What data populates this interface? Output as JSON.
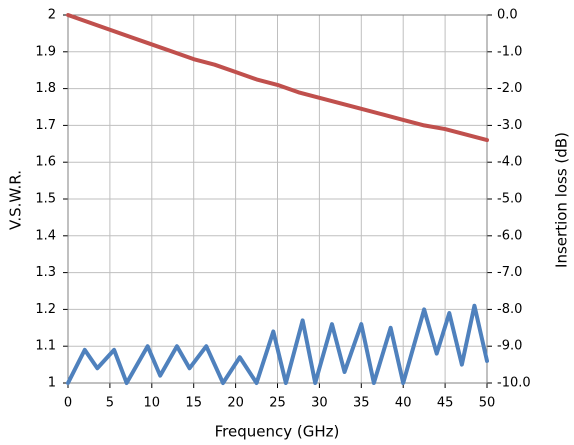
{
  "chart_data": {
    "type": "line",
    "x_label": "Frequency (GHz)",
    "y_label": "V.S.W.R.",
    "y2_label": "Insertion loss (dB)",
    "xlim": [
      0,
      50
    ],
    "xticks": [
      0,
      5,
      10,
      15,
      20,
      25,
      30,
      35,
      40,
      45,
      50
    ],
    "ylim": [
      1,
      2
    ],
    "yticks": [
      1,
      1.1,
      1.2,
      1.3,
      1.4,
      1.5,
      1.6,
      1.7,
      1.8,
      1.9,
      2
    ],
    "y2lim": [
      -10,
      0
    ],
    "y2ticks": [
      {
        "value": -10,
        "label": "-10.0"
      },
      {
        "value": -9,
        "label": "-9.0"
      },
      {
        "value": -8,
        "label": "-8.0"
      },
      {
        "value": -7,
        "label": "-7.0"
      },
      {
        "value": -6,
        "label": "-6.0"
      },
      {
        "value": -5,
        "label": "-5.0"
      },
      {
        "value": -4,
        "label": "-4.0"
      },
      {
        "value": -3,
        "label": "-3.0"
      },
      {
        "value": -2,
        "label": "-2.0"
      },
      {
        "value": -1,
        "label": "-1.0"
      },
      {
        "value": 0,
        "label": "0.0"
      }
    ],
    "grid": true,
    "series": [
      {
        "color": "#4f81bd",
        "x": [
          0,
          2,
          3.5,
          5.5,
          7,
          9.5,
          11,
          13,
          14.5,
          16.5,
          18.5,
          20.5,
          22.5,
          24.5,
          26,
          28,
          29.5,
          31.5,
          33,
          35,
          36.5,
          38.5,
          40,
          42.5,
          44,
          45.5,
          47,
          48.5,
          50
        ],
        "values": [
          1.0,
          1.09,
          1.04,
          1.09,
          1.0,
          1.1,
          1.02,
          1.1,
          1.04,
          1.1,
          1.0,
          1.07,
          1.0,
          1.14,
          1.0,
          1.17,
          1.0,
          1.16,
          1.03,
          1.16,
          1.0,
          1.15,
          1.0,
          1.2,
          1.08,
          1.19,
          1.05,
          1.21,
          1.06
        ]
      },
      {
        "color": "#c0504d",
        "axis": "y2",
        "x": [
          0,
          2.5,
          5,
          7.5,
          10,
          12.5,
          15,
          17.5,
          20,
          22.5,
          25,
          27.5,
          30,
          32.5,
          35,
          37.5,
          40,
          42.5,
          45,
          47.5,
          50
        ],
        "values": [
          0,
          -0.2,
          -0.4,
          -0.6,
          -0.8,
          -1.0,
          -1.2,
          -1.35,
          -1.55,
          -1.75,
          -1.9,
          -2.1,
          -2.25,
          -2.4,
          -2.55,
          -2.7,
          -2.85,
          -3.0,
          -3.1,
          -3.25,
          -3.4
        ]
      }
    ]
  }
}
